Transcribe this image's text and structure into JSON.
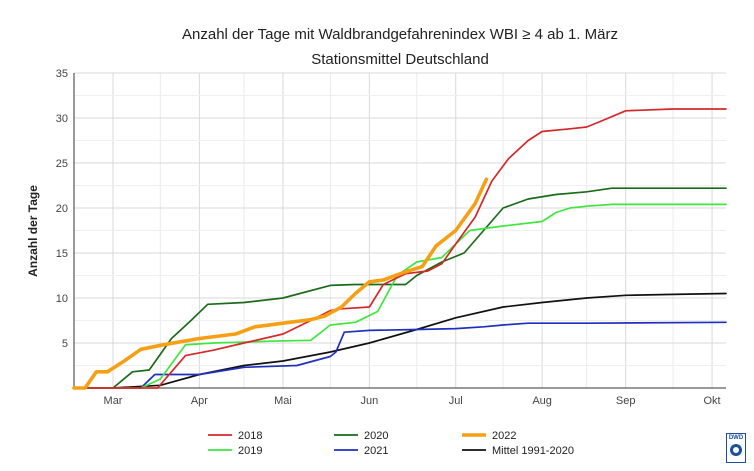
{
  "chart_data": {
    "type": "line",
    "title": "Anzahl der Tage mit Waldbrandgefahrenindex WBI  ≥ 4 ab 1. März",
    "subtitle": "Stationsmittel Deutschland",
    "xlabel": "",
    "ylabel": "Anzahl der Tage",
    "xlim": [
      "03-01",
      "10-20"
    ],
    "ylim": [
      0,
      35
    ],
    "yticks": [
      5,
      10,
      15,
      20,
      25,
      30,
      35
    ],
    "ytick_labels": [
      "5",
      "10",
      "15",
      "20",
      "25",
      "30",
      "35"
    ],
    "x_ticks": [
      "Mar",
      "Apr",
      "Mai",
      "Jun",
      "Jul",
      "Aug",
      "Sep",
      "Okt"
    ],
    "grid": true,
    "legend_position": "bottom",
    "series": [
      {
        "name": "2018",
        "color": "#d62728",
        "x": [
          "03-01",
          "03-31",
          "04-05",
          "04-10",
          "04-20",
          "05-01",
          "05-15",
          "05-25",
          "06-01",
          "06-05",
          "06-15",
          "06-20",
          "06-28",
          "07-05",
          "07-10",
          "07-15",
          "07-22",
          "07-28",
          "08-03",
          "08-10",
          "08-15",
          "08-25",
          "09-01",
          "09-05",
          "09-15",
          "10-01",
          "10-20"
        ],
        "y": [
          0,
          0,
          1.8,
          3.6,
          4.2,
          5.0,
          6.0,
          7.5,
          8.6,
          8.8,
          9.0,
          11.5,
          12.7,
          13.0,
          13.8,
          16.0,
          19.0,
          23.0,
          25.5,
          27.5,
          28.5,
          28.8,
          29.0,
          29.5,
          30.8,
          31.0,
          31.0
        ]
      },
      {
        "name": "2019",
        "color": "#3ee63e",
        "x": [
          "03-01",
          "03-25",
          "04-01",
          "04-10",
          "04-20",
          "05-01",
          "05-10",
          "05-25",
          "06-01",
          "06-10",
          "06-18",
          "06-25",
          "07-01",
          "07-10",
          "07-20",
          "08-01",
          "08-15",
          "08-20",
          "08-25",
          "09-01",
          "09-10",
          "10-20"
        ],
        "y": [
          0,
          0,
          1.0,
          4.8,
          5.0,
          5.1,
          5.2,
          5.3,
          7.0,
          7.3,
          8.5,
          12.5,
          14.0,
          14.5,
          17.5,
          18.0,
          18.5,
          19.5,
          20.0,
          20.2,
          20.4,
          20.4
        ]
      },
      {
        "name": "2020",
        "color": "#1a6b1a",
        "x": [
          "03-01",
          "03-15",
          "03-22",
          "03-28",
          "04-05",
          "04-12",
          "04-18",
          "05-01",
          "05-15",
          "06-01",
          "06-10",
          "06-20",
          "06-28",
          "07-01",
          "07-10",
          "07-18",
          "07-25",
          "08-01",
          "08-10",
          "08-20",
          "09-01",
          "09-10",
          "10-20"
        ],
        "y": [
          0,
          0,
          1.8,
          2.0,
          5.5,
          7.5,
          9.3,
          9.5,
          10.0,
          11.4,
          11.5,
          11.5,
          11.5,
          12.5,
          14.0,
          15.0,
          17.5,
          20.0,
          21.0,
          21.5,
          21.8,
          22.2,
          22.2
        ]
      },
      {
        "name": "2021",
        "color": "#1f2fbf",
        "x": [
          "03-01",
          "03-25",
          "03-30",
          "04-05",
          "04-15",
          "05-01",
          "05-20",
          "06-01",
          "06-03",
          "06-06",
          "06-15",
          "07-01",
          "07-15",
          "07-25",
          "08-01",
          "08-10",
          "09-01",
          "10-20"
        ],
        "y": [
          0,
          0,
          1.5,
          1.5,
          1.5,
          2.3,
          2.5,
          3.5,
          4.0,
          6.2,
          6.4,
          6.5,
          6.6,
          6.8,
          7.0,
          7.2,
          7.2,
          7.3
        ]
      },
      {
        "name": "2022",
        "color": "#f5a014",
        "x": [
          "03-01",
          "03-05",
          "03-09",
          "03-13",
          "03-19",
          "03-25",
          "04-02",
          "04-15",
          "04-28",
          "05-05",
          "05-15",
          "05-25",
          "05-30",
          "06-05",
          "06-10",
          "06-15",
          "06-20",
          "06-27",
          "07-03",
          "07-08",
          "07-15",
          "07-22",
          "07-26"
        ],
        "y": [
          0,
          0,
          1.8,
          1.8,
          3.0,
          4.3,
          4.8,
          5.5,
          6.0,
          6.8,
          7.2,
          7.6,
          8.0,
          9.0,
          10.5,
          11.8,
          12.0,
          12.8,
          13.5,
          15.8,
          17.5,
          20.5,
          23.2
        ]
      },
      {
        "name": "Mittel 1991-2020",
        "color": "#111111",
        "x": [
          "03-01",
          "03-15",
          "04-01",
          "04-15",
          "05-01",
          "05-15",
          "06-01",
          "06-15",
          "07-01",
          "07-15",
          "08-01",
          "08-15",
          "09-01",
          "09-15",
          "10-01",
          "10-20"
        ],
        "y": [
          0,
          0,
          0.3,
          1.5,
          2.5,
          3.0,
          4.0,
          5.0,
          6.5,
          7.8,
          9.0,
          9.5,
          10.0,
          10.3,
          10.4,
          10.5
        ]
      }
    ]
  }
}
